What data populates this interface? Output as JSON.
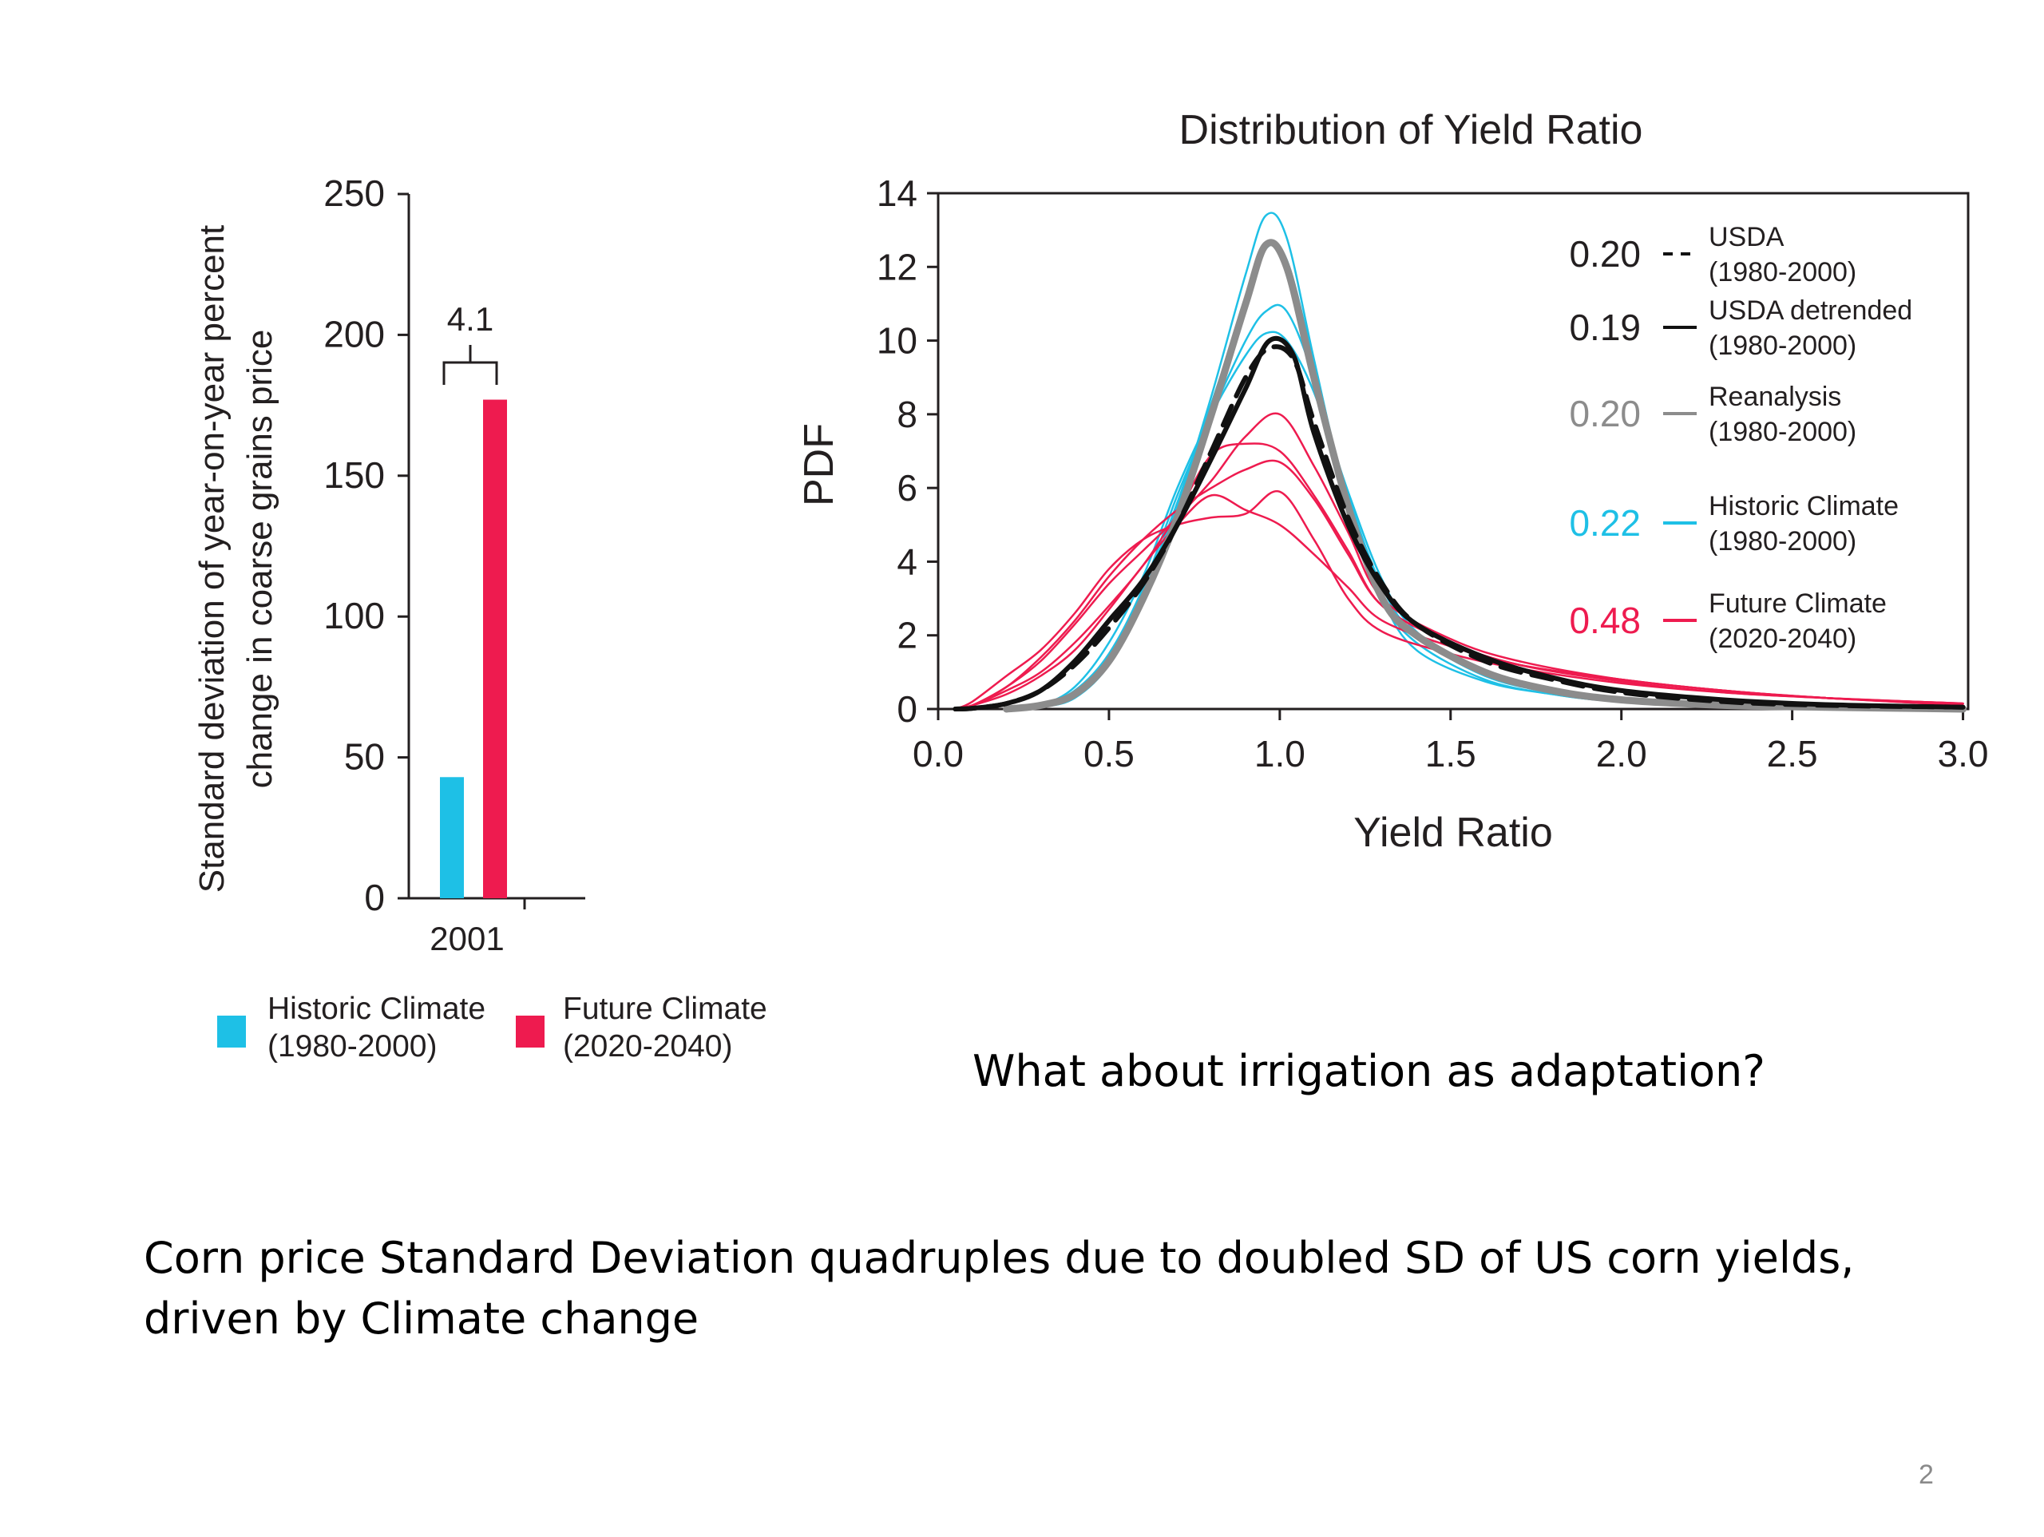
{
  "slide": {
    "question": "What about irrigation as adaptation?",
    "summary_line1": "Corn price Standard Deviation quadruples due to  doubled SD of US corn yields,",
    "summary_line2": "driven by Climate change",
    "page_number": "2"
  },
  "colors": {
    "historic": "#1ec0e6",
    "future": "#ee1b4f",
    "usda": "#111111",
    "reanalysis": "#8c8c8c",
    "axis": "#231f20"
  },
  "chart_data": [
    {
      "type": "bar",
      "ylabel_line1": "Standard deviation of year-on-year percent",
      "ylabel_line2": "change in coarse grains price",
      "categories": [
        "2001"
      ],
      "series": [
        {
          "name": "Historic Climate",
          "period": "(1980-2000)",
          "values": [
            43
          ],
          "color": "#1ec0e6"
        },
        {
          "name": "Future Climate",
          "period": "(2020-2040)",
          "values": [
            177
          ],
          "color": "#ee1b4f"
        }
      ],
      "ylim": [
        0,
        250
      ],
      "yticks": [
        "0",
        "50",
        "100",
        "150",
        "200",
        "250"
      ],
      "annotation": "4.1"
    },
    {
      "type": "line",
      "title": "Distribution of Yield Ratio",
      "xlabel": "Yield Ratio",
      "ylabel": "PDF",
      "xlim": [
        0,
        3
      ],
      "ylim": [
        0,
        14
      ],
      "xticks": [
        "0.0",
        "0.5",
        "1.0",
        "1.5",
        "2.0",
        "2.5",
        "3.0"
      ],
      "yticks": [
        "0",
        "2",
        "4",
        "6",
        "8",
        "10",
        "12",
        "14"
      ],
      "legend": [
        {
          "value": "0.20",
          "line": "USDA",
          "period": "(1980-2000)",
          "style": "dashed",
          "color": "#111111"
        },
        {
          "value": "0.19",
          "line": "USDA detrended",
          "period": "(1980-2000)",
          "style": "solid",
          "color": "#111111"
        },
        {
          "value": "0.20",
          "line": "Reanalysis",
          "period": "(1980-2000)",
          "style": "solid",
          "color": "#8c8c8c"
        },
        {
          "value": "0.22",
          "line": "Historic Climate",
          "period": "(1980-2000)",
          "style": "solid",
          "color": "#1ec0e6"
        },
        {
          "value": "0.48",
          "line": "Future Climate",
          "period": "(2020-2040)",
          "style": "solid",
          "color": "#ee1b4f"
        }
      ],
      "series": [
        {
          "name": "Historic Climate",
          "color": "#1ec0e6",
          "width": 2.5,
          "x": [
            0.2,
            0.3,
            0.4,
            0.5,
            0.6,
            0.7,
            0.8,
            0.9,
            0.96,
            1.02,
            1.1,
            1.2,
            1.3,
            1.4,
            1.6,
            1.8,
            2.0,
            2.3,
            2.6,
            3.0
          ],
          "y": [
            0,
            0.05,
            0.3,
            1.2,
            3.0,
            5.5,
            8.5,
            11.8,
            13.4,
            12.8,
            9.5,
            5.5,
            3.0,
            1.8,
            0.8,
            0.4,
            0.2,
            0.1,
            0.05,
            0
          ]
        },
        {
          "name": "Historic Climate",
          "color": "#1ec0e6",
          "width": 2.5,
          "x": [
            0.2,
            0.3,
            0.4,
            0.5,
            0.6,
            0.7,
            0.8,
            0.9,
            0.96,
            1.02,
            1.1,
            1.2,
            1.3,
            1.4,
            1.6,
            1.8,
            2.0,
            2.3,
            2.6,
            3.0
          ],
          "y": [
            0,
            0.1,
            0.5,
            1.5,
            3.3,
            5.8,
            8.0,
            10.0,
            10.8,
            10.8,
            9.0,
            5.8,
            3.3,
            2.0,
            0.9,
            0.45,
            0.25,
            0.1,
            0.05,
            0
          ]
        },
        {
          "name": "Historic Climate",
          "color": "#1ec0e6",
          "width": 2.5,
          "x": [
            0.2,
            0.3,
            0.4,
            0.5,
            0.6,
            0.7,
            0.8,
            0.9,
            0.96,
            1.02,
            1.1,
            1.2,
            1.3,
            1.4,
            1.6,
            1.8,
            2.0,
            2.3,
            2.6,
            3.0
          ],
          "y": [
            0,
            0.05,
            0.4,
            1.4,
            3.2,
            5.6,
            8.3,
            11.0,
            12.5,
            12.2,
            9.4,
            5.6,
            3.0,
            1.6,
            0.75,
            0.4,
            0.2,
            0.1,
            0.05,
            0
          ]
        },
        {
          "name": "Historic Climate",
          "color": "#1ec0e6",
          "width": 2.5,
          "x": [
            0.2,
            0.3,
            0.4,
            0.5,
            0.6,
            0.7,
            0.8,
            0.9,
            0.96,
            1.02,
            1.1,
            1.2,
            1.3,
            1.4,
            1.6,
            1.8,
            2.0,
            2.3,
            2.6,
            3.0
          ],
          "y": [
            0,
            0.1,
            0.6,
            1.8,
            3.6,
            6.0,
            8.0,
            9.6,
            10.2,
            10.0,
            8.6,
            5.9,
            3.5,
            2.1,
            1.0,
            0.5,
            0.25,
            0.1,
            0.05,
            0
          ]
        },
        {
          "name": "Future Climate",
          "color": "#ee1b4f",
          "width": 2.5,
          "x": [
            0.05,
            0.1,
            0.2,
            0.3,
            0.4,
            0.5,
            0.6,
            0.7,
            0.8,
            0.9,
            1.0,
            1.1,
            1.2,
            1.3,
            1.5,
            1.7,
            2.0,
            2.3,
            2.6,
            3.0
          ],
          "y": [
            0,
            0.2,
            0.9,
            1.6,
            2.6,
            3.8,
            4.6,
            5.0,
            5.2,
            5.3,
            5.9,
            4.6,
            3.0,
            2.1,
            1.5,
            1.1,
            0.7,
            0.45,
            0.3,
            0.15
          ]
        },
        {
          "name": "Future Climate",
          "color": "#ee1b4f",
          "width": 2.5,
          "x": [
            0.05,
            0.1,
            0.2,
            0.3,
            0.4,
            0.5,
            0.6,
            0.7,
            0.8,
            0.9,
            1.0,
            1.1,
            1.2,
            1.3,
            1.5,
            1.7,
            2.0,
            2.3,
            2.6,
            3.0
          ],
          "y": [
            0,
            0.1,
            0.6,
            1.3,
            2.3,
            3.4,
            4.3,
            5.2,
            6.2,
            7.4,
            8.0,
            6.6,
            4.8,
            3.0,
            1.9,
            1.3,
            0.8,
            0.5,
            0.3,
            0.1
          ]
        },
        {
          "name": "Future Climate",
          "color": "#ee1b4f",
          "width": 2.5,
          "x": [
            0.05,
            0.1,
            0.2,
            0.3,
            0.4,
            0.5,
            0.6,
            0.7,
            0.8,
            0.9,
            1.0,
            1.1,
            1.2,
            1.3,
            1.5,
            1.7,
            2.0,
            2.3,
            2.6,
            3.0
          ],
          "y": [
            0,
            0.1,
            0.5,
            1.0,
            1.8,
            2.8,
            3.9,
            5.3,
            6.9,
            7.2,
            7.0,
            5.8,
            4.3,
            2.8,
            1.8,
            1.2,
            0.8,
            0.5,
            0.3,
            0.15
          ]
        },
        {
          "name": "Future Climate",
          "color": "#ee1b4f",
          "width": 2.5,
          "x": [
            0.05,
            0.1,
            0.2,
            0.3,
            0.4,
            0.5,
            0.6,
            0.7,
            0.8,
            0.9,
            1.0,
            1.1,
            1.2,
            1.3,
            1.5,
            1.7,
            2.0,
            2.3,
            2.6,
            3.0
          ],
          "y": [
            0,
            0.1,
            0.6,
            1.4,
            2.4,
            3.6,
            4.6,
            5.4,
            6.0,
            6.5,
            6.7,
            5.7,
            4.2,
            2.8,
            1.8,
            1.2,
            0.75,
            0.45,
            0.3,
            0.1
          ]
        },
        {
          "name": "Future Climate",
          "color": "#ee1b4f",
          "width": 2.5,
          "x": [
            0.05,
            0.1,
            0.2,
            0.3,
            0.4,
            0.5,
            0.6,
            0.7,
            0.8,
            0.9,
            1.0,
            1.1,
            1.2,
            1.3,
            1.5,
            1.7,
            2.0,
            2.3,
            2.6,
            3.0
          ],
          "y": [
            0,
            0.1,
            0.4,
            0.9,
            1.6,
            2.7,
            3.9,
            5.0,
            5.8,
            5.4,
            5.0,
            4.2,
            3.3,
            2.4,
            1.7,
            1.2,
            0.8,
            0.5,
            0.3,
            0.15
          ]
        },
        {
          "name": "Reanalysis",
          "color": "#8c8c8c",
          "width": 9,
          "x": [
            0.2,
            0.3,
            0.4,
            0.5,
            0.6,
            0.7,
            0.8,
            0.9,
            0.96,
            1.02,
            1.1,
            1.2,
            1.3,
            1.4,
            1.6,
            1.8,
            2.0,
            2.3,
            2.6,
            3.0
          ],
          "y": [
            0,
            0.1,
            0.4,
            1.3,
            3.0,
            5.2,
            8.0,
            11.0,
            12.6,
            12.0,
            9.0,
            5.5,
            3.0,
            2.0,
            1.0,
            0.5,
            0.25,
            0.1,
            0.05,
            0
          ]
        },
        {
          "name": "USDA",
          "color": "#111111",
          "width": 6,
          "dashed": true,
          "x": [
            0.05,
            0.1,
            0.2,
            0.3,
            0.4,
            0.5,
            0.6,
            0.7,
            0.8,
            0.9,
            0.97,
            1.04,
            1.1,
            1.2,
            1.3,
            1.4,
            1.6,
            1.8,
            2.0,
            2.3,
            2.6,
            3.0
          ],
          "y": [
            0,
            0.02,
            0.15,
            0.5,
            1.2,
            2.2,
            3.4,
            5.0,
            7.0,
            9.0,
            9.8,
            9.5,
            7.8,
            5.2,
            3.4,
            2.3,
            1.3,
            0.8,
            0.45,
            0.2,
            0.1,
            0.05
          ]
        },
        {
          "name": "USDA detrended",
          "color": "#111111",
          "width": 6,
          "x": [
            0.05,
            0.1,
            0.2,
            0.3,
            0.4,
            0.5,
            0.6,
            0.7,
            0.8,
            0.9,
            0.97,
            1.04,
            1.1,
            1.2,
            1.3,
            1.4,
            1.6,
            1.8,
            2.0,
            2.3,
            2.6,
            3.0
          ],
          "y": [
            0,
            0.02,
            0.15,
            0.5,
            1.3,
            2.4,
            3.5,
            5.0,
            6.8,
            8.7,
            10.0,
            9.6,
            7.5,
            5.0,
            3.3,
            2.3,
            1.4,
            0.85,
            0.5,
            0.25,
            0.12,
            0.05
          ]
        }
      ]
    }
  ]
}
